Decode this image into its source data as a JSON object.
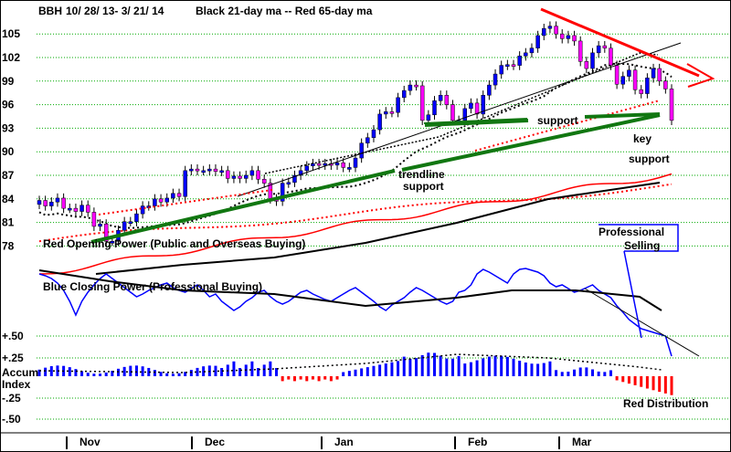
{
  "header": {
    "ticker": "BBH",
    "range": "10/ 28/ 13-  3/ 21/ 14",
    "ma_note": "Black 21-day ma --   Red 65-day ma"
  },
  "colors": {
    "up": "#0000ff",
    "down": "#ff00ff",
    "ma21": "#000000",
    "ma65": "#ff0000",
    "green": "#117711",
    "blue": "#0000ff",
    "red": "#ff0000",
    "grid": "#00aa00"
  },
  "price_axis": {
    "ticks": [
      "105",
      "102",
      "99",
      "96",
      "93",
      "90",
      "87",
      "84",
      "81",
      "78"
    ],
    "min": 77,
    "max": 107
  },
  "lower_axis": {
    "ticks": [
      "+.50",
      "+.25",
      "Accum\nIndex",
      "-.25",
      "-.50"
    ]
  },
  "x_axis": {
    "months": [
      "Nov",
      "Dec",
      "Jan",
      "Feb",
      "Mar"
    ]
  },
  "annotations": {
    "trendline": [
      "trendline",
      "support"
    ],
    "support": "support",
    "key_support": [
      "key",
      "support"
    ],
    "red_opening": "Red Opening Power (Public and Overseas Buying)",
    "blue_closing": "Blue Closing Power (Professional Buying)",
    "professional": [
      "Professional",
      "Selling"
    ],
    "red_distribution": "Red Distribution"
  },
  "chart_data": {
    "type": "candlestick",
    "title": "BBH",
    "series_notes": [
      "Black 21-day ma",
      "Red 65-day ma"
    ],
    "price_close": [
      83.8,
      83.1,
      83.6,
      84.1,
      82.8,
      82.8,
      82.4,
      83.2,
      82.3,
      80.5,
      80.8,
      78.6,
      78.6,
      80.0,
      81.1,
      81.1,
      82.1,
      83.1,
      83.1,
      84.0,
      83.6,
      84.1,
      84.7,
      84.3,
      87.6,
      87.8,
      87.6,
      87.6,
      87.8,
      87.5,
      87.6,
      86.6,
      86.9,
      86.6,
      87.0,
      87.6,
      86.5,
      86.0,
      84.0,
      83.7,
      86.0,
      86.1,
      87.0,
      87.6,
      88.2,
      88.5,
      88.3,
      88.5,
      88.3,
      88.6,
      88.0,
      88.0,
      89.2,
      91.1,
      91.8,
      92.8,
      94.8,
      95.1,
      95.0,
      96.9,
      97.8,
      98.5,
      98.4,
      94.0,
      94.7,
      96.5,
      97.2,
      96.0,
      94.0,
      94.0,
      95.5,
      96.2,
      94.8,
      97.2,
      98.5,
      99.9,
      101.0,
      101.1,
      101.0,
      102.2,
      102.6,
      103.2,
      104.8,
      105.7,
      106.0,
      105.0,
      104.4,
      104.8,
      104.1,
      101.5,
      100.6,
      102.6,
      103.5,
      103.2,
      101.0,
      98.6,
      99.6,
      100.4,
      97.9,
      97.4,
      99.4,
      100.6,
      99.0,
      98.0,
      94.0
    ],
    "ma21_endpoints": [
      [
        0,
        80.2
      ],
      [
        104,
        85.6
      ]
    ],
    "ma65_endpoints": [
      [
        0,
        79.8
      ],
      [
        104,
        86.9
      ]
    ],
    "opening_power": "rising",
    "closing_power": "falling in March",
    "accum_index": {
      "min": -0.5,
      "max": 0.5,
      "peak": 0.33,
      "last": -0.22
    }
  }
}
